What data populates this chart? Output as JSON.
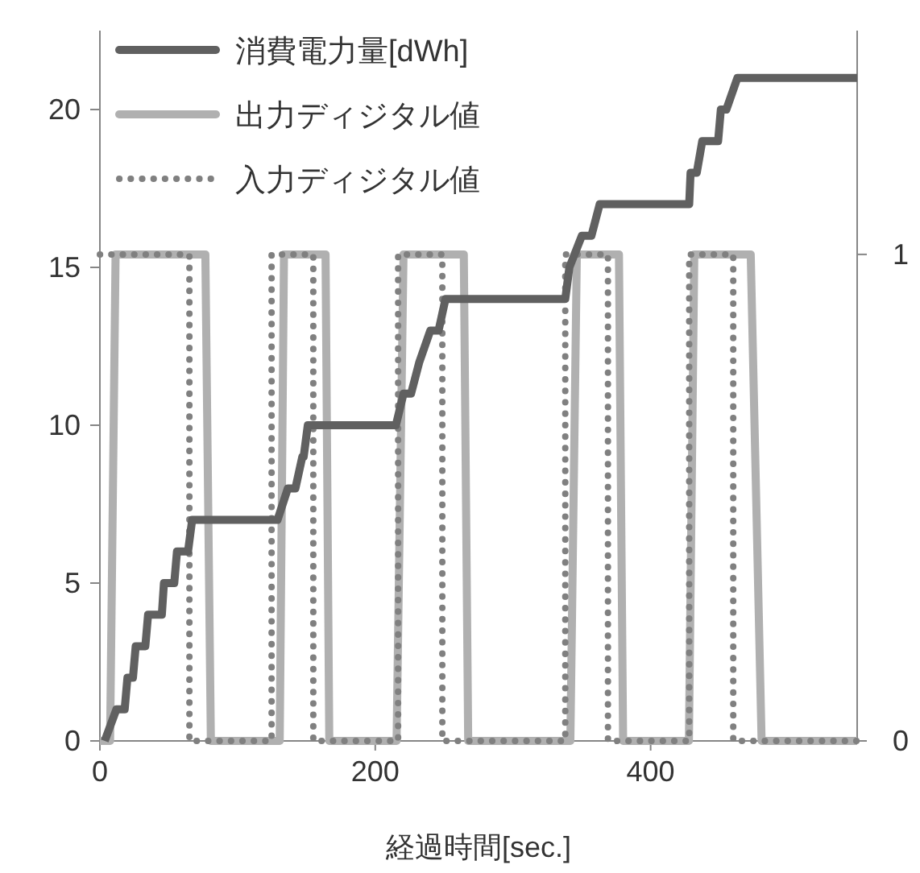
{
  "chart_data": {
    "type": "line",
    "xlabel": "経過時間[sec.]",
    "xlim": [
      0,
      550
    ],
    "xticks": [
      0,
      200,
      400
    ],
    "ylim": [
      0,
      22.5
    ],
    "yticks": [
      0,
      5,
      10,
      15,
      20
    ],
    "y2lim": [
      0,
      1.46
    ],
    "y2ticks": [
      0,
      1
    ],
    "legend": "top left",
    "grid": false,
    "marker": "none",
    "series": [
      {
        "name": "消費電力量[dWh]",
        "color": "#606060",
        "line_style": "solid",
        "x": [
          3.5,
          12,
          18,
          20,
          24,
          26,
          33,
          35,
          45,
          46.5,
          54,
          56,
          64,
          67,
          129,
          136.5,
          142,
          147,
          148,
          151,
          215,
          220.5,
          226,
          232,
          240,
          246,
          251,
          338,
          341,
          350,
          357,
          363,
          428,
          429,
          433.5,
          437.5,
          449,
          451,
          455,
          463,
          550
        ],
        "values": [
          0,
          1,
          1,
          2,
          2,
          3,
          3,
          4,
          4,
          5,
          5,
          6,
          6,
          7,
          7,
          8,
          8,
          9,
          9,
          10,
          10,
          11,
          11,
          12,
          13,
          13,
          14,
          14,
          15,
          16,
          16,
          17,
          17,
          18,
          18,
          19,
          19,
          20,
          20,
          21,
          21
        ]
      },
      {
        "name": "出力ディジタル値",
        "color": "#b0b0b0",
        "line_style": "solid",
        "axis": "y2",
        "x": [
          0,
          7.4,
          11.4,
          76.6,
          80.6,
          130.6,
          133.7,
          163.9,
          166.6,
          215.5,
          220.5,
          264.3,
          267.5,
          341.7,
          346.4,
          377,
          380,
          427.8,
          431.7,
          472.7,
          480.6,
          550
        ],
        "values": [
          0,
          0,
          1,
          1,
          0,
          0,
          1,
          1,
          0,
          0,
          1,
          1,
          0,
          0,
          1,
          1,
          0,
          0,
          1,
          1,
          0,
          0
        ]
      },
      {
        "name": "入力ディジタル値",
        "color": "#808080",
        "line_style": "dotted",
        "axis": "y2",
        "x": [
          0,
          65,
          65,
          124.7,
          124.7,
          155,
          155,
          216.6,
          216.6,
          248.7,
          248.7,
          338,
          338,
          369,
          369,
          428,
          428,
          460,
          460,
          550
        ],
        "values": [
          1,
          1,
          0,
          0,
          1,
          1,
          0,
          0,
          1,
          1,
          0,
          0,
          1,
          1,
          0,
          0,
          1,
          1,
          0,
          0
        ]
      }
    ]
  }
}
